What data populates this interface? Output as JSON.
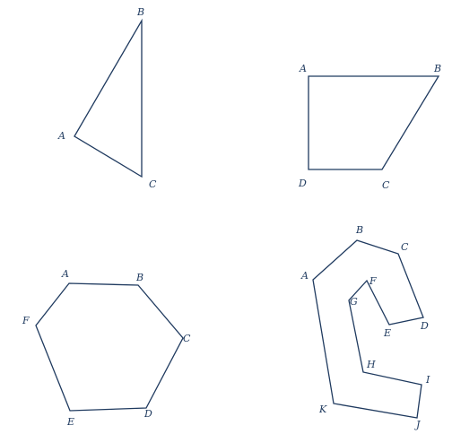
{
  "colors": {
    "stroke": "#1f3a5f",
    "label": "#1f3a5f",
    "background": "#ffffff"
  },
  "figures": [
    {
      "name": "triangle",
      "labels": [
        "A",
        "B",
        "C"
      ]
    },
    {
      "name": "quadrilateral",
      "labels": [
        "A",
        "B",
        "C",
        "D"
      ]
    },
    {
      "name": "hexagon",
      "labels": [
        "A",
        "B",
        "C",
        "D",
        "E",
        "F"
      ]
    },
    {
      "name": "concave-polygon",
      "labels": [
        "A",
        "B",
        "C",
        "D",
        "E",
        "F",
        "G",
        "H",
        "I",
        "J",
        "K"
      ]
    }
  ]
}
